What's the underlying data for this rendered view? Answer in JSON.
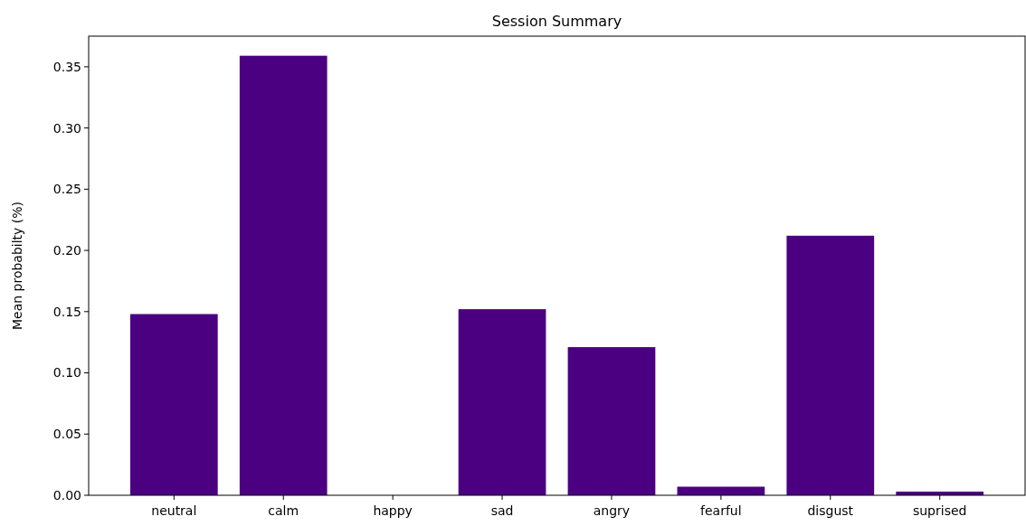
{
  "chart_data": {
    "type": "bar",
    "title": "Session Summary",
    "ylabel": "Mean probabilty (%)",
    "categories": [
      "neutral",
      "calm",
      "happy",
      "sad",
      "angry",
      "fearful",
      "disgust",
      "suprised"
    ],
    "values": [
      0.148,
      0.359,
      0,
      0.152,
      0.121,
      0.007,
      0.212,
      0.003
    ],
    "color": "#4b0082",
    "ylim": [
      0,
      0.375
    ],
    "yticks": [
      {
        "value": 0,
        "label": "0.00"
      },
      {
        "value": 0.05,
        "label": "0.05"
      },
      {
        "value": 0.1,
        "label": "0.10"
      },
      {
        "value": 0.15,
        "label": "0.15"
      },
      {
        "value": 0.2,
        "label": "0.20"
      },
      {
        "value": 0.25,
        "label": "0.25"
      },
      {
        "value": 0.3,
        "label": "0.30"
      },
      {
        "value": 0.35,
        "label": "0.35"
      }
    ]
  }
}
